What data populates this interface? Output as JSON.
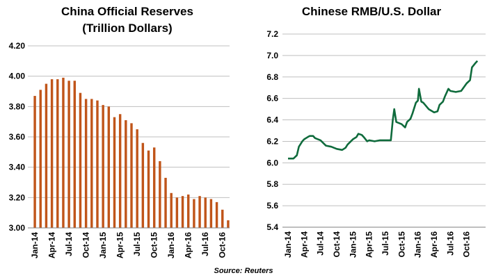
{
  "colors": {
    "bar": "#c0551a",
    "line": "#0f6b3c",
    "grid": "#bfbfbf",
    "axis": "#7f7f7f"
  },
  "source": "Source: Reuters",
  "chart_data": [
    {
      "type": "bar",
      "title_lines": [
        "China Official Reserves",
        "(Trillion Dollars)"
      ],
      "xlabel": "",
      "ylabel": "",
      "ylim": [
        3.0,
        4.2
      ],
      "yticks": [
        "3.00",
        "3.20",
        "3.40",
        "3.60",
        "3.80",
        "4.00",
        "4.20"
      ],
      "grid": true,
      "categories": [
        "Jan-14",
        "Feb-14",
        "Mar-14",
        "Apr-14",
        "May-14",
        "Jun-14",
        "Jul-14",
        "Aug-14",
        "Sep-14",
        "Oct-14",
        "Nov-14",
        "Dec-14",
        "Jan-15",
        "Feb-15",
        "Mar-15",
        "Apr-15",
        "May-15",
        "Jun-15",
        "Jul-15",
        "Aug-15",
        "Sep-15",
        "Oct-15",
        "Nov-15",
        "Dec-15",
        "Jan-16",
        "Feb-16",
        "Mar-16",
        "Apr-16",
        "May-16",
        "Jun-16",
        "Jul-16",
        "Aug-16",
        "Sep-16",
        "Oct-16",
        "Nov-16"
      ],
      "values": [
        3.87,
        3.91,
        3.95,
        3.98,
        3.98,
        3.99,
        3.97,
        3.97,
        3.89,
        3.85,
        3.85,
        3.84,
        3.81,
        3.8,
        3.73,
        3.75,
        3.71,
        3.69,
        3.65,
        3.56,
        3.51,
        3.53,
        3.44,
        3.33,
        3.23,
        3.2,
        3.21,
        3.22,
        3.19,
        3.21,
        3.2,
        3.19,
        3.17,
        3.12,
        3.05
      ],
      "tick_labels": [
        "Jan-14",
        "Apr-14",
        "Jul-14",
        "Oct-14",
        "Jan-15",
        "Apr-15",
        "Jul-15",
        "Oct-15",
        "Jan-16",
        "Apr-16",
        "Jul-16",
        "Oct-16"
      ]
    },
    {
      "type": "line",
      "title_lines": [
        "Chinese RMB/U.S. Dollar"
      ],
      "xlabel": "",
      "ylabel": "",
      "ylim": [
        5.4,
        7.2
      ],
      "yticks": [
        "5.4",
        "5.6",
        "5.8",
        "6.0",
        "6.2",
        "6.4",
        "6.6",
        "6.8",
        "7.0",
        "7.2"
      ],
      "grid": true,
      "x_range": [
        "2014-01",
        "2016-12"
      ],
      "tick_labels": [
        "Jan-14",
        "Apr-14",
        "Jul-14",
        "Oct-14",
        "Jan-15",
        "Apr-15",
        "Jul-15",
        "Oct-15",
        "Jan-16",
        "Apr-16",
        "Jul-16",
        "Oct-16"
      ],
      "series": [
        {
          "x": [
            "2014-01",
            "2014-02",
            "2014-02-20",
            "2014-03",
            "2014-03-20",
            "2014-04",
            "2014-04-20",
            "2014-05",
            "2014-05-20",
            "2014-06",
            "2014-07",
            "2014-08",
            "2014-09",
            "2014-10",
            "2014-11",
            "2014-11-20",
            "2014-12",
            "2015-01",
            "2015-01-20",
            "2015-02",
            "2015-02-20",
            "2015-03",
            "2015-03-20",
            "2015-04",
            "2015-05",
            "2015-06",
            "2015-07",
            "2015-08",
            "2015-08-12",
            "2015-08-20",
            "2015-09",
            "2015-10",
            "2015-10-20",
            "2015-11",
            "2015-11-20",
            "2015-12",
            "2015-12-20",
            "2016-01",
            "2016-01-07",
            "2016-01-20",
            "2016-02",
            "2016-03",
            "2016-04",
            "2016-04-20",
            "2016-05",
            "2016-05-20",
            "2016-06",
            "2016-06-20",
            "2016-07",
            "2016-08",
            "2016-09",
            "2016-10",
            "2016-10-20",
            "2016-11",
            "2016-11-20",
            "2016-12"
          ],
          "y": [
            6.04,
            6.04,
            6.07,
            6.15,
            6.2,
            6.22,
            6.24,
            6.25,
            6.25,
            6.23,
            6.21,
            6.16,
            6.15,
            6.13,
            6.12,
            6.14,
            6.17,
            6.22,
            6.24,
            6.27,
            6.26,
            6.24,
            6.2,
            6.21,
            6.2,
            6.21,
            6.21,
            6.21,
            6.4,
            6.5,
            6.38,
            6.36,
            6.33,
            6.38,
            6.41,
            6.46,
            6.56,
            6.58,
            6.69,
            6.57,
            6.56,
            6.5,
            6.47,
            6.48,
            6.54,
            6.57,
            6.62,
            6.69,
            6.67,
            6.66,
            6.67,
            6.74,
            6.77,
            6.89,
            6.93,
            6.95
          ]
        }
      ]
    }
  ]
}
